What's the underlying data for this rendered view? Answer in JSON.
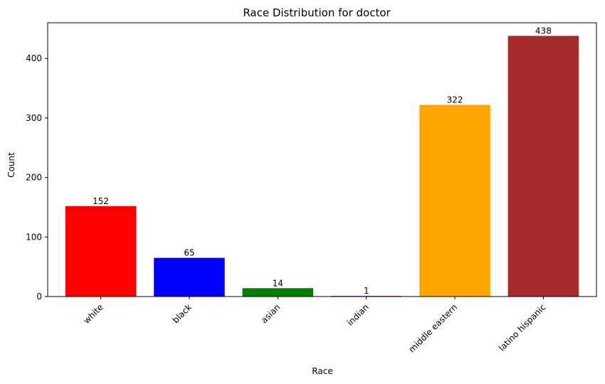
{
  "chart_data": {
    "type": "bar",
    "title": "Race Distribution for doctor",
    "xlabel": "Race",
    "ylabel": "Count",
    "categories": [
      "white",
      "black",
      "asian",
      "indian",
      "middle eastern",
      "latino hispanic"
    ],
    "values": [
      152,
      65,
      14,
      1,
      322,
      438
    ],
    "colors": [
      "#ff0000",
      "#0000ff",
      "#008000",
      "#800080",
      "#ffa500",
      "#a52a2a"
    ],
    "ylim": [
      0,
      460
    ],
    "yticks": [
      0,
      100,
      200,
      300,
      400
    ],
    "data_labels": true,
    "grid": false,
    "legend": "none",
    "x_tick_rotation": 45
  }
}
